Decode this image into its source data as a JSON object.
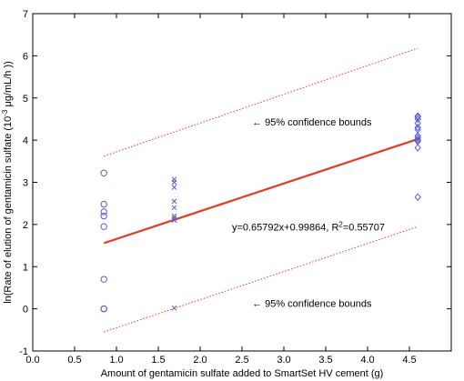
{
  "chart_data": {
    "type": "scatter",
    "xlabel": "Amount of gentamicin sulfate added to SmartSet HV cement (g)",
    "ylabel_parts": {
      "prefix": "ln(Rate of elution of gentamicin sulfate (10",
      "exponent": "-3",
      "suffix": " μg/mL/h ))"
    },
    "xlim": [
      0,
      5
    ],
    "ylim": [
      -1,
      7
    ],
    "x_ticks": [
      "0.0",
      "0.5",
      "1.0",
      "1.5",
      "2.0",
      "2.5",
      "3.0",
      "3.5",
      "4.0",
      "4.5"
    ],
    "x_tick_values": [
      0,
      0.5,
      1.0,
      1.5,
      2.0,
      2.5,
      3.0,
      3.5,
      4.0,
      4.5
    ],
    "y_ticks": [
      "-1",
      "0",
      "1",
      "2",
      "3",
      "4",
      "5",
      "6",
      "7"
    ],
    "y_tick_values": [
      -1,
      0,
      1,
      2,
      3,
      4,
      5,
      6,
      7
    ],
    "grid": false,
    "colors": {
      "fit_line": "#e8391e",
      "confidence_bounds": "#e8391e",
      "markers": "#5a5acd",
      "axes": "#000000"
    },
    "series": [
      {
        "marker": "circle",
        "x": [
          0.85,
          0.85,
          0.85,
          0.85,
          0.85,
          0.85,
          0.85,
          0.85
        ],
        "y": [
          3.22,
          2.48,
          2.3,
          2.2,
          1.95,
          0.7,
          0.0,
          0.0
        ]
      },
      {
        "marker": "x",
        "x": [
          1.69,
          1.69,
          1.69,
          1.69,
          1.69,
          1.69,
          1.69,
          1.69,
          1.69
        ],
        "y": [
          3.07,
          3.0,
          2.88,
          2.55,
          2.4,
          2.2,
          2.15,
          2.1,
          0.02
        ]
      },
      {
        "marker": "diamond",
        "x": [
          4.6,
          4.6,
          4.6,
          4.6,
          4.6,
          4.6,
          4.6,
          4.6,
          4.6,
          4.6,
          4.6,
          4.6
        ],
        "y": [
          4.57,
          4.5,
          4.4,
          4.3,
          4.25,
          4.1,
          4.05,
          4.0,
          3.97,
          3.82,
          2.65,
          4.55
        ]
      }
    ],
    "fit": {
      "type": "line",
      "slope": 0.65792,
      "intercept": 0.99864,
      "x_range": [
        0.85,
        4.6
      ]
    },
    "confidence_bounds": {
      "upper": {
        "x": [
          0.85,
          4.6
        ],
        "y": [
          3.62,
          6.18
        ]
      },
      "lower": {
        "x": [
          0.85,
          4.6
        ],
        "y": [
          -0.55,
          1.95
        ]
      }
    },
    "annotations": [
      {
        "id": "upper-bound-label",
        "text": "← 95% confidence bounds",
        "x": 2.62,
        "y": 4.35
      },
      {
        "id": "lower-bound-label",
        "text": "← 95% confidence bounds",
        "x": 2.62,
        "y": 0.05
      },
      {
        "id": "equation-label",
        "text_main": "y=0.65792x+0.99864, R",
        "text_sup": "2",
        "text_tail": "=0.55707",
        "x": 2.38,
        "y": 1.86
      }
    ]
  }
}
